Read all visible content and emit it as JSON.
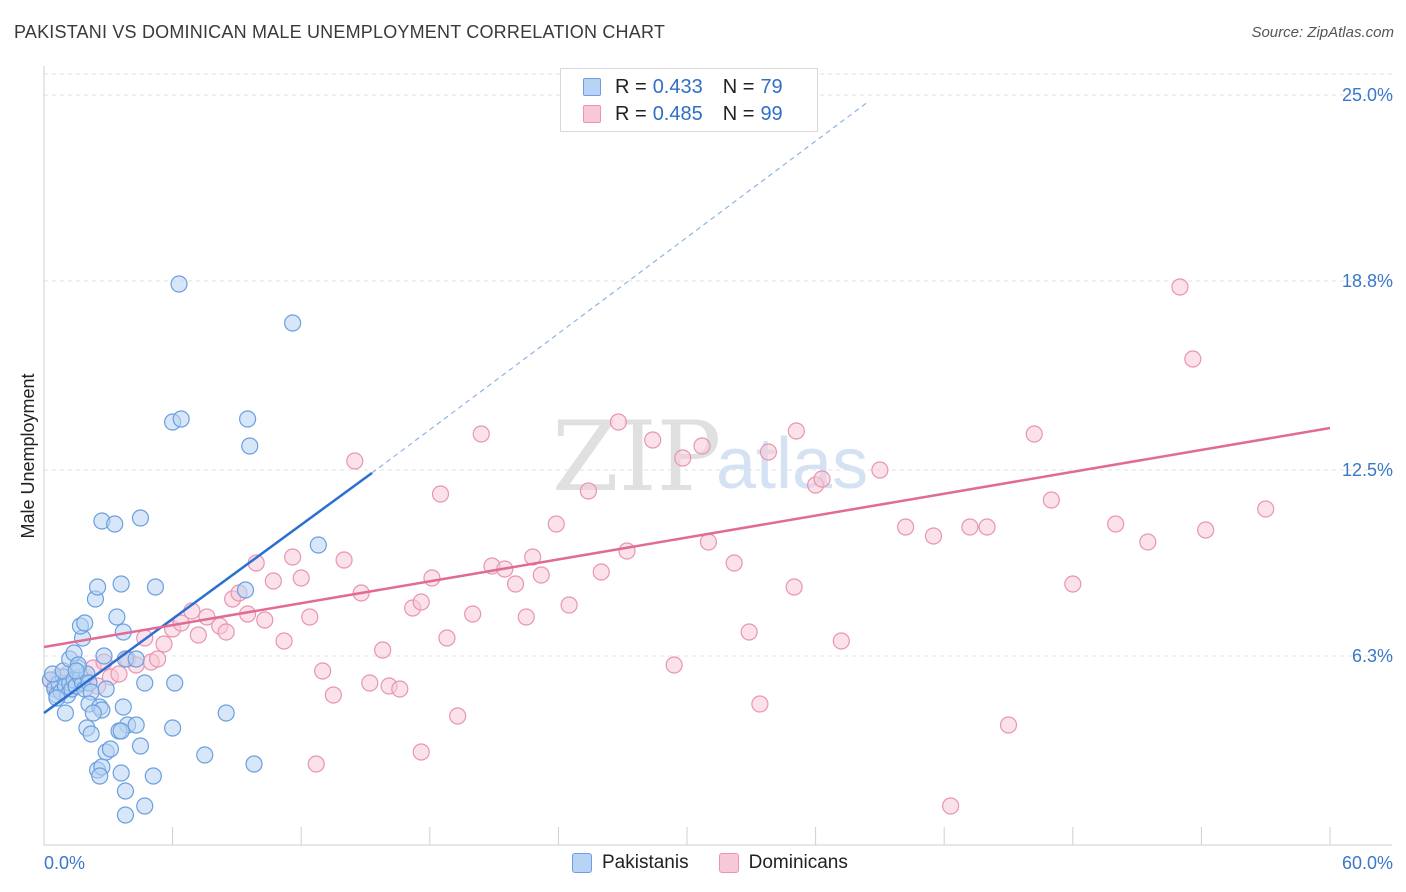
{
  "title": "PAKISTANI VS DOMINICAN MALE UNEMPLOYMENT CORRELATION CHART",
  "source": "Source: ZipAtlas.com",
  "watermark": {
    "zip": "ZIP",
    "atlas": "atlas"
  },
  "legend": {
    "rows": [
      {
        "r_label": "R =",
        "r_value": "0.433",
        "n_label": "N =",
        "n_value": "79"
      },
      {
        "r_label": "R =",
        "r_value": "0.485",
        "n_label": "N =",
        "n_value": "99"
      }
    ]
  },
  "colors": {
    "pakistanis_fill": "#b8d3f3",
    "pakistanis_stroke": "#6a9fe0",
    "pakistanis_line": "#2a6fd1",
    "dominicans_fill": "#f7c8d7",
    "dominicans_stroke": "#e895b2",
    "dominicans_line": "#e06c93",
    "tick_text": "#3a78c9",
    "grid": "#e2e2e2"
  },
  "chart_data": {
    "type": "scatter",
    "title": "PAKISTANI VS DOMINICAN MALE UNEMPLOYMENT CORRELATION CHART",
    "xlabel": "",
    "ylabel": "Male Unemployment",
    "xlim": [
      0,
      60
    ],
    "ylim": [
      0,
      25.7
    ],
    "x_tick_labels": [
      "0.0%",
      "60.0%"
    ],
    "y_ticks": [
      6.3,
      12.5,
      18.8,
      25.0
    ],
    "y_tick_labels": [
      "6.3%",
      "12.5%",
      "18.8%",
      "25.0%"
    ],
    "grid": "horizontal dashed",
    "legend_position": "top-center and bottom",
    "series": [
      {
        "name": "Pakistanis",
        "r": 0.433,
        "n": 79,
        "trend": {
          "x0": 0,
          "y0": 4.4,
          "x1": 15.3,
          "y1": 12.4,
          "extended_to_x": 38.5,
          "extended_to_y": 24.8
        },
        "points": [
          [
            0.3,
            5.5
          ],
          [
            0.5,
            5.2
          ],
          [
            0.6,
            5.0
          ],
          [
            0.7,
            5.4
          ],
          [
            0.8,
            5.1
          ],
          [
            0.9,
            5.6
          ],
          [
            1.0,
            5.3
          ],
          [
            1.1,
            5.0
          ],
          [
            1.2,
            5.4
          ],
          [
            1.3,
            5.2
          ],
          [
            0.4,
            5.7
          ],
          [
            0.6,
            4.9
          ],
          [
            0.9,
            5.8
          ],
          [
            1.4,
            5.5
          ],
          [
            1.5,
            5.3
          ],
          [
            1.6,
            5.9
          ],
          [
            1.7,
            5.6
          ],
          [
            1.8,
            5.4
          ],
          [
            1.9,
            5.2
          ],
          [
            2.0,
            5.7
          ],
          [
            2.1,
            5.4
          ],
          [
            2.2,
            5.1
          ],
          [
            1.2,
            6.2
          ],
          [
            1.4,
            6.4
          ],
          [
            1.6,
            6.0
          ],
          [
            1.8,
            6.9
          ],
          [
            1.7,
            7.3
          ],
          [
            1.9,
            7.4
          ],
          [
            2.4,
            8.2
          ],
          [
            2.5,
            8.6
          ],
          [
            3.6,
            8.7
          ],
          [
            3.7,
            7.1
          ],
          [
            3.4,
            7.6
          ],
          [
            5.2,
            8.6
          ],
          [
            2.7,
            10.8
          ],
          [
            3.3,
            10.7
          ],
          [
            4.5,
            10.9
          ],
          [
            6.0,
            14.1
          ],
          [
            6.4,
            14.2
          ],
          [
            9.5,
            14.2
          ],
          [
            9.6,
            13.3
          ],
          [
            6.3,
            18.7
          ],
          [
            11.6,
            17.4
          ],
          [
            12.8,
            10.0
          ],
          [
            3.8,
            6.2
          ],
          [
            4.3,
            6.2
          ],
          [
            2.8,
            6.3
          ],
          [
            1.0,
            4.4
          ],
          [
            2.1,
            4.7
          ],
          [
            2.6,
            4.6
          ],
          [
            2.7,
            4.5
          ],
          [
            3.7,
            4.6
          ],
          [
            3.9,
            4.0
          ],
          [
            4.3,
            4.0
          ],
          [
            3.5,
            3.8
          ],
          [
            3.6,
            3.8
          ],
          [
            2.0,
            3.9
          ],
          [
            2.2,
            3.7
          ],
          [
            2.9,
            3.1
          ],
          [
            3.1,
            3.2
          ],
          [
            4.5,
            3.3
          ],
          [
            2.5,
            2.5
          ],
          [
            2.7,
            2.6
          ],
          [
            3.6,
            2.4
          ],
          [
            2.6,
            2.3
          ],
          [
            5.1,
            2.3
          ],
          [
            3.8,
            1.8
          ],
          [
            4.7,
            1.3
          ],
          [
            3.8,
            1.0
          ],
          [
            4.7,
            5.4
          ],
          [
            6.1,
            5.4
          ],
          [
            6.0,
            3.9
          ],
          [
            7.5,
            3.0
          ],
          [
            8.5,
            4.4
          ],
          [
            9.8,
            2.7
          ],
          [
            9.4,
            8.5
          ],
          [
            2.9,
            5.2
          ],
          [
            2.3,
            4.4
          ],
          [
            1.5,
            5.8
          ]
        ]
      },
      {
        "name": "Dominicans",
        "r": 0.485,
        "n": 99,
        "trend": {
          "x0": 0,
          "y0": 6.6,
          "x1": 60,
          "y1": 13.9
        },
        "points": [
          [
            0.3,
            5.5
          ],
          [
            0.5,
            5.3
          ],
          [
            0.7,
            5.6
          ],
          [
            0.9,
            5.4
          ],
          [
            1.1,
            5.7
          ],
          [
            1.3,
            5.2
          ],
          [
            1.5,
            5.8
          ],
          [
            1.7,
            5.5
          ],
          [
            1.9,
            5.6
          ],
          [
            2.1,
            5.4
          ],
          [
            2.3,
            5.9
          ],
          [
            2.5,
            5.3
          ],
          [
            2.8,
            6.1
          ],
          [
            3.1,
            5.6
          ],
          [
            3.5,
            5.7
          ],
          [
            3.9,
            6.2
          ],
          [
            4.3,
            6.0
          ],
          [
            4.7,
            6.9
          ],
          [
            5.0,
            6.1
          ],
          [
            5.3,
            6.2
          ],
          [
            5.6,
            6.7
          ],
          [
            6.0,
            7.2
          ],
          [
            6.4,
            7.4
          ],
          [
            6.9,
            7.8
          ],
          [
            7.2,
            7.0
          ],
          [
            7.6,
            7.6
          ],
          [
            8.2,
            7.3
          ],
          [
            8.5,
            7.1
          ],
          [
            8.8,
            8.2
          ],
          [
            9.1,
            8.4
          ],
          [
            9.5,
            7.7
          ],
          [
            9.9,
            9.4
          ],
          [
            10.3,
            7.5
          ],
          [
            10.7,
            8.8
          ],
          [
            11.2,
            6.8
          ],
          [
            11.6,
            9.6
          ],
          [
            12.0,
            8.9
          ],
          [
            12.4,
            7.6
          ],
          [
            13.0,
            5.8
          ],
          [
            13.5,
            5.0
          ],
          [
            14.0,
            9.5
          ],
          [
            14.5,
            12.8
          ],
          [
            14.8,
            8.4
          ],
          [
            15.2,
            5.4
          ],
          [
            15.8,
            6.5
          ],
          [
            16.1,
            5.3
          ],
          [
            16.6,
            5.2
          ],
          [
            17.2,
            7.9
          ],
          [
            17.6,
            8.1
          ],
          [
            18.1,
            8.9
          ],
          [
            18.5,
            11.7
          ],
          [
            18.8,
            6.9
          ],
          [
            19.3,
            4.3
          ],
          [
            20.0,
            7.7
          ],
          [
            20.4,
            13.7
          ],
          [
            20.9,
            9.3
          ],
          [
            21.5,
            9.2
          ],
          [
            22.0,
            8.7
          ],
          [
            22.5,
            7.6
          ],
          [
            22.8,
            9.6
          ],
          [
            23.2,
            9.0
          ],
          [
            23.9,
            10.7
          ],
          [
            24.5,
            8.0
          ],
          [
            25.4,
            11.8
          ],
          [
            26.0,
            9.1
          ],
          [
            26.8,
            14.1
          ],
          [
            27.2,
            9.8
          ],
          [
            28.4,
            13.5
          ],
          [
            29.4,
            6.0
          ],
          [
            29.8,
            12.9
          ],
          [
            30.7,
            13.3
          ],
          [
            31.0,
            10.1
          ],
          [
            32.2,
            9.4
          ],
          [
            32.9,
            7.1
          ],
          [
            33.4,
            4.7
          ],
          [
            33.8,
            13.1
          ],
          [
            35.1,
            13.8
          ],
          [
            35.0,
            8.6
          ],
          [
            36.0,
            12.0
          ],
          [
            36.3,
            12.2
          ],
          [
            37.2,
            6.8
          ],
          [
            39.0,
            12.5
          ],
          [
            40.2,
            10.6
          ],
          [
            41.5,
            10.3
          ],
          [
            42.3,
            1.3
          ],
          [
            43.2,
            10.6
          ],
          [
            44.0,
            10.6
          ],
          [
            45.0,
            4.0
          ],
          [
            46.2,
            13.7
          ],
          [
            47.0,
            11.5
          ],
          [
            48.0,
            8.7
          ],
          [
            50.0,
            10.7
          ],
          [
            51.5,
            10.1
          ],
          [
            53.0,
            18.6
          ],
          [
            53.6,
            16.2
          ],
          [
            54.2,
            10.5
          ],
          [
            57.0,
            11.2
          ],
          [
            17.6,
            3.1
          ],
          [
            12.7,
            2.7
          ]
        ]
      }
    ]
  }
}
